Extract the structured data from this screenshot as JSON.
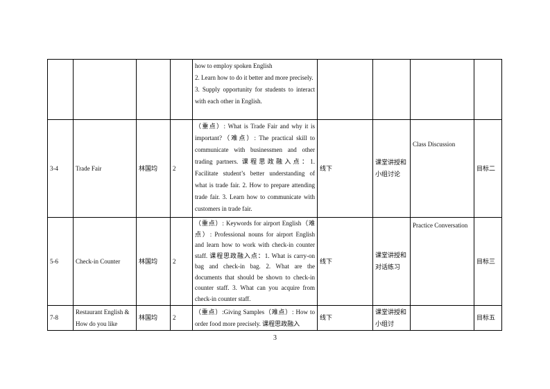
{
  "rows": [
    {
      "num": "",
      "title": "",
      "teacher": "",
      "hours": "",
      "content": "how to employ spoken English\n2. Learn how to do it better and more precisely.\n3. Supply opportunity for students to interact with each other in English.",
      "mode": "",
      "method": "",
      "activity": "",
      "goal": ""
    },
    {
      "num": "3-4",
      "title": "Trade Fair",
      "teacher": "林国均",
      "hours": "2",
      "content": "（重点）: What is Trade Fair and why it is important?（难点）: The practical skill to communicate with businessmen and other trading partners.  课程思政融入点：1. Facilitate student’s better understanding of what is trade fair. 2. How to prepare attending trade fair. 3. Learn how to communicate with customers in trade fair.",
      "mode": "线下",
      "method": "课堂讲授和小组讨论",
      "activity": "Class Discussion",
      "goal": "目标二"
    },
    {
      "num": "5-6",
      "title": "Check-in Counter",
      "teacher": "林国均",
      "hours": "2",
      "content": "（重点）: Keywords for airport English（难点）: Professional nouns for airport English and learn how to work with check-in counter staff.  课程思政融入点：1. What is carry-on bag and check-in bag. 2. What are the documents that should be shown to check-in counter staff. 3. What can you acquire from check-in counter staff.",
      "mode": "线下",
      "method": "课堂讲授和对话练习",
      "activity": "Practice Conversation",
      "goal": "目标三"
    },
    {
      "num": "7-8",
      "title": "Restaurant English & How do you like",
      "teacher": "林国均",
      "hours": "2",
      "content": "（重点）:Giving Samples（难点）: How to order food more precisely.  课程思政融入",
      "mode": "线下",
      "method": "课堂讲授和小组讨",
      "activity": "",
      "goal": "目标五"
    }
  ],
  "page_number": "3"
}
